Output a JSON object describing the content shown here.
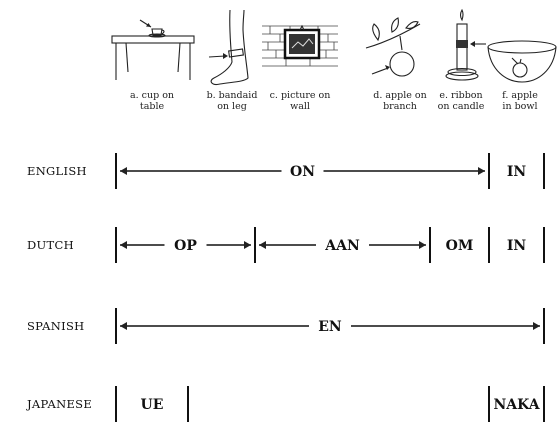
{
  "pictures": [
    {
      "letter": "a.",
      "line1": "a. cup on",
      "line2": "table",
      "icon": "cup-on-table-icon"
    },
    {
      "letter": "b.",
      "line1": "b. bandaid",
      "line2": "on leg",
      "icon": "bandaid-on-leg-icon"
    },
    {
      "letter": "c.",
      "line1": "c. picture on",
      "line2": "wall",
      "icon": "picture-on-wall-icon"
    },
    {
      "letter": "d.",
      "line1": "d. apple on",
      "line2": "branch",
      "icon": "apple-on-branch-icon"
    },
    {
      "letter": "e.",
      "line1": "e. ribbon",
      "line2": "on candle",
      "icon": "ribbon-on-candle-icon"
    },
    {
      "letter": "f.",
      "line1": "f. apple",
      "line2": "in bowl",
      "icon": "apple-in-bowl-icon"
    }
  ],
  "languages": [
    {
      "name": "ENGLISH",
      "terms": [
        {
          "label": "ON",
          "from": "a",
          "to": "e"
        },
        {
          "label": "IN",
          "from": "f",
          "to": "f"
        }
      ]
    },
    {
      "name": "DUTCH",
      "terms": [
        {
          "label": "OP",
          "from": "a",
          "to": "b"
        },
        {
          "label": "AAN",
          "from": "c",
          "to": "d"
        },
        {
          "label": "OM",
          "from": "e",
          "to": "e"
        },
        {
          "label": "IN",
          "from": "f",
          "to": "f"
        }
      ]
    },
    {
      "name": "SPANISH",
      "terms": [
        {
          "label": "EN",
          "from": "a",
          "to": "f"
        }
      ]
    },
    {
      "name": "JAPANESE",
      "terms": [
        {
          "label": "UE",
          "from": "a",
          "to": "a"
        },
        {
          "label": "NAKA",
          "from": "f",
          "to": "f"
        }
      ]
    }
  ]
}
